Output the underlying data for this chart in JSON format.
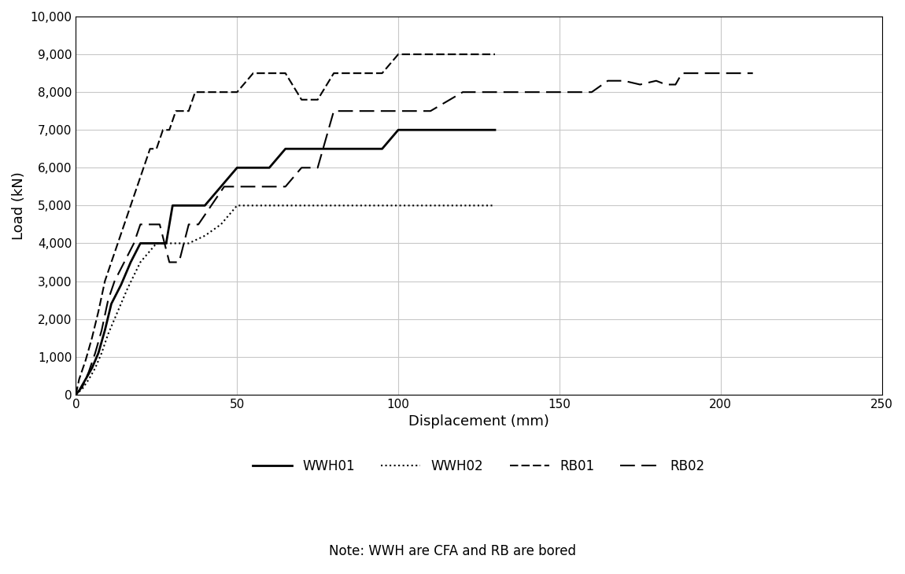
{
  "WWH01": {
    "x": [
      0,
      1,
      3,
      5,
      7,
      9,
      11,
      14,
      17,
      20,
      22,
      25,
      28,
      30,
      33,
      36,
      40,
      45,
      50,
      55,
      57,
      60,
      65,
      70,
      75,
      80,
      85,
      90,
      95,
      100,
      105,
      110,
      120,
      130
    ],
    "y": [
      0,
      100,
      400,
      700,
      1100,
      1700,
      2400,
      2900,
      3500,
      4000,
      4000,
      4000,
      4000,
      5000,
      5000,
      5000,
      5000,
      5500,
      6000,
      6000,
      6000,
      6000,
      6500,
      6500,
      6500,
      6500,
      6500,
      6500,
      6500,
      7000,
      7000,
      7000,
      7000,
      7000
    ],
    "color": "#000000",
    "linewidth": 2.0,
    "label": "WWH01",
    "linestyle": "solid"
  },
  "WWH02": {
    "x": [
      0,
      2,
      4,
      6,
      8,
      10,
      13,
      16,
      20,
      25,
      30,
      35,
      40,
      45,
      50,
      55,
      60,
      70,
      80,
      90,
      100,
      110,
      120,
      130
    ],
    "y": [
      0,
      150,
      400,
      700,
      1100,
      1600,
      2200,
      2800,
      3500,
      4000,
      4000,
      4000,
      4200,
      4500,
      5000,
      5000,
      5000,
      5000,
      5000,
      5000,
      5000,
      5000,
      5000,
      5000
    ],
    "color": "#000000",
    "linewidth": 1.5,
    "label": "WWH02",
    "linestyle": "dotted"
  },
  "RB01": {
    "x": [
      0,
      1,
      3,
      5,
      7,
      9,
      11,
      13,
      15,
      17,
      19,
      21,
      23,
      25,
      27,
      29,
      31,
      33,
      35,
      37,
      40,
      43,
      46,
      50,
      55,
      60,
      65,
      70,
      75,
      80,
      85,
      90,
      95,
      100,
      105,
      110,
      120,
      130
    ],
    "y": [
      0,
      400,
      900,
      1500,
      2200,
      3000,
      3500,
      4000,
      4500,
      5000,
      5500,
      6000,
      6500,
      6500,
      7000,
      7000,
      7500,
      7500,
      7500,
      8000,
      8000,
      8000,
      8000,
      8000,
      8500,
      8500,
      8500,
      7800,
      7800,
      8500,
      8500,
      8500,
      8500,
      9000,
      9000,
      9000,
      9000,
      9000
    ],
    "color": "#000000",
    "linewidth": 1.5,
    "label": "RB01",
    "linestyle": "dense_dash",
    "dashes": [
      5,
      2
    ]
  },
  "RB02": {
    "x": [
      0,
      2,
      4,
      6,
      8,
      10,
      12,
      15,
      18,
      20,
      23,
      26,
      29,
      32,
      35,
      38,
      42,
      46,
      50,
      55,
      60,
      65,
      70,
      75,
      80,
      85,
      90,
      95,
      100,
      110,
      120,
      130,
      140,
      150,
      160,
      165,
      170,
      175,
      180,
      183,
      186,
      188,
      191,
      194,
      197,
      200,
      203,
      207,
      210
    ],
    "y": [
      0,
      200,
      600,
      1100,
      1700,
      2500,
      3000,
      3500,
      4000,
      4500,
      4500,
      4500,
      3500,
      3500,
      4500,
      4500,
      5000,
      5500,
      5500,
      5500,
      5500,
      5500,
      6000,
      6000,
      7500,
      7500,
      7500,
      7500,
      7500,
      7500,
      8000,
      8000,
      8000,
      8000,
      8000,
      8300,
      8300,
      8200,
      8300,
      8200,
      8200,
      8500,
      8500,
      8500,
      8500,
      8500,
      8500,
      8500,
      8500
    ],
    "color": "#000000",
    "linewidth": 1.5,
    "label": "RB02",
    "linestyle": "long_dash",
    "dashes": [
      9,
      4
    ]
  },
  "xlim": [
    0,
    250
  ],
  "ylim": [
    0,
    10000
  ],
  "xticks": [
    0,
    50,
    100,
    150,
    200,
    250
  ],
  "yticks": [
    0,
    1000,
    2000,
    3000,
    4000,
    5000,
    6000,
    7000,
    8000,
    9000,
    10000
  ],
  "xlabel": "Displacement (mm)",
  "ylabel": "Load (kN)",
  "note": "Note: WWH are CFA and RB are bored",
  "background_color": "#ffffff",
  "grid_color": "#c8c8c8"
}
